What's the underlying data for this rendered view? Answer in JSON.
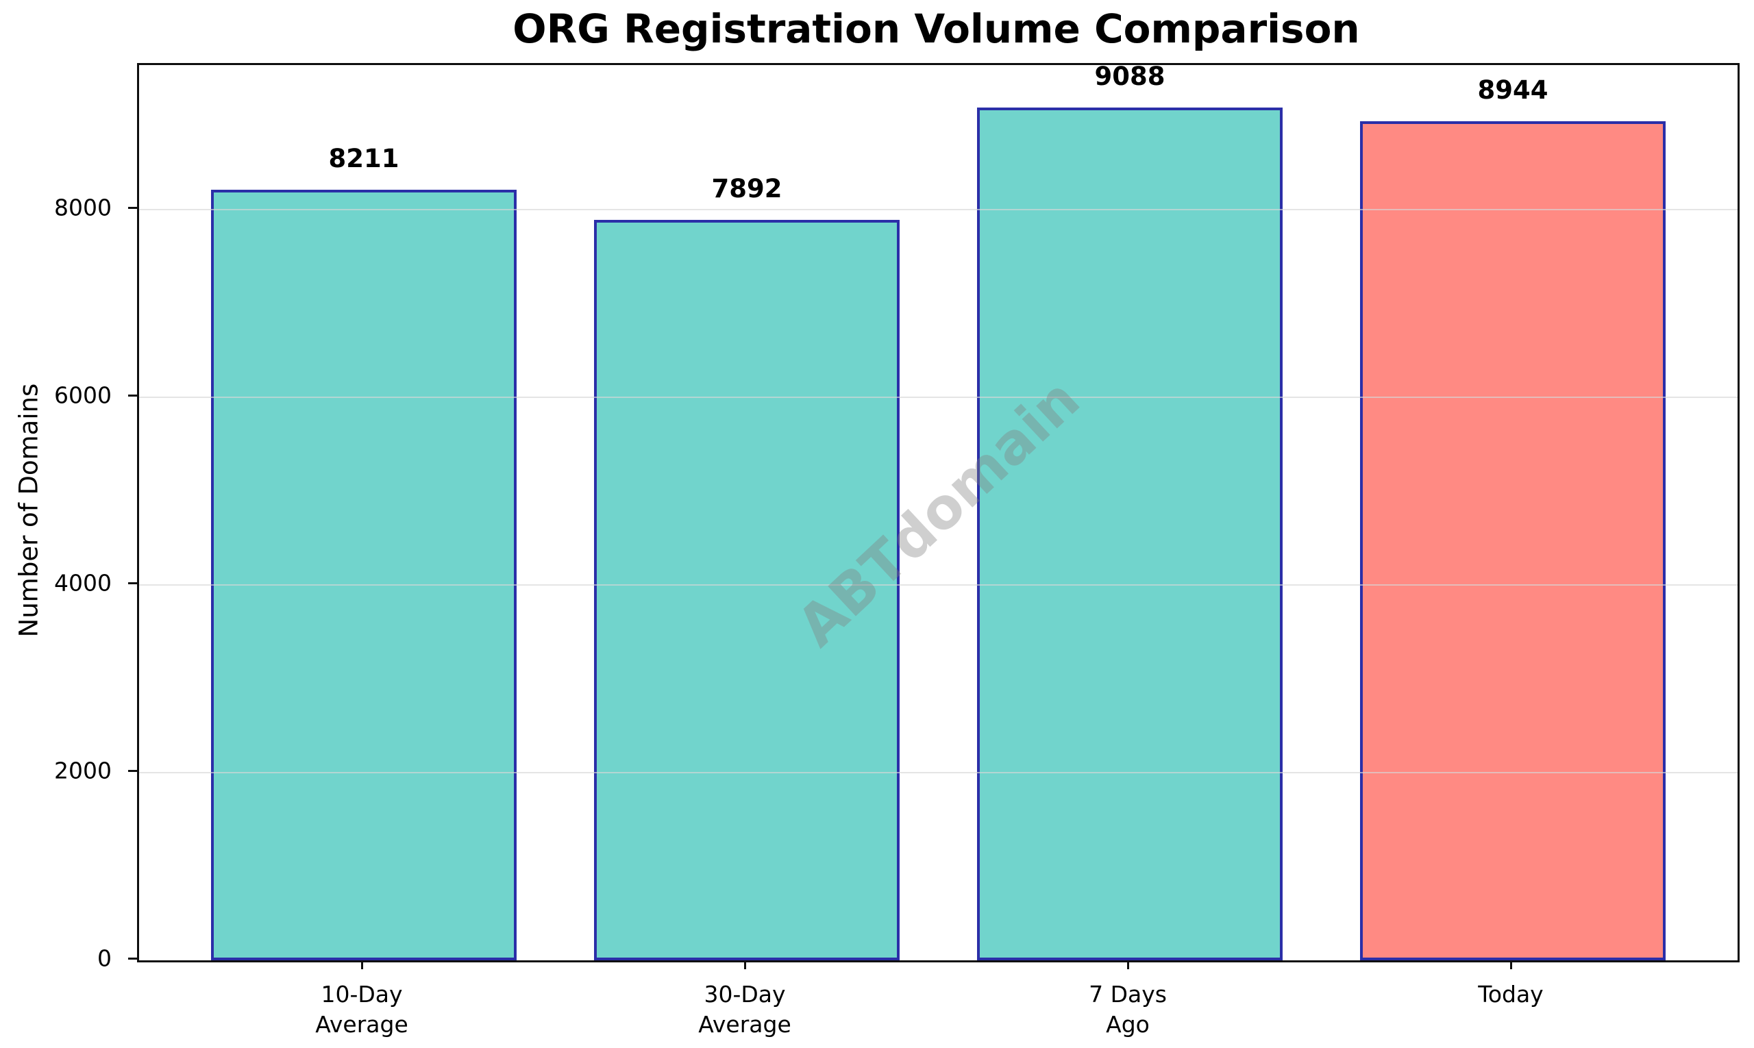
{
  "figure": {
    "title": "ORG Registration Volume Comparison"
  },
  "chart_data": {
    "type": "bar",
    "title": "ORG Registration Volume Comparison",
    "categories": [
      "10-Day\nAverage",
      "30-Day\nAverage",
      "7 Days\nAgo",
      "Today"
    ],
    "values": [
      8211,
      7892,
      9088,
      8944
    ],
    "value_labels": [
      "8211",
      "7892",
      "9088",
      "8944"
    ],
    "series_colors": [
      "#71d4cc",
      "#71d4cc",
      "#71d4cc",
      "#ff8a83"
    ],
    "bar_edge_color": "#2b2fa8",
    "xlabel": "",
    "ylabel": "Number of Domains",
    "ytick_labels": [
      "0",
      "2000",
      "4000",
      "6000",
      "8000"
    ],
    "ytick_values": [
      0,
      2000,
      4000,
      6000,
      8000
    ],
    "ylim": [
      0,
      9542
    ],
    "grid": "horizontal",
    "legend_position": "none",
    "watermark": {
      "text": "ABTdomain",
      "color": "#808080",
      "rotation_deg": -43
    },
    "colors": {
      "comparison_bar": "#71d4cc",
      "today_bar": "#ff8a83",
      "bar_edge": "#2b2fa8",
      "gridline": "#d7d7d7",
      "text": "#000000",
      "background": "#ffffff"
    }
  }
}
